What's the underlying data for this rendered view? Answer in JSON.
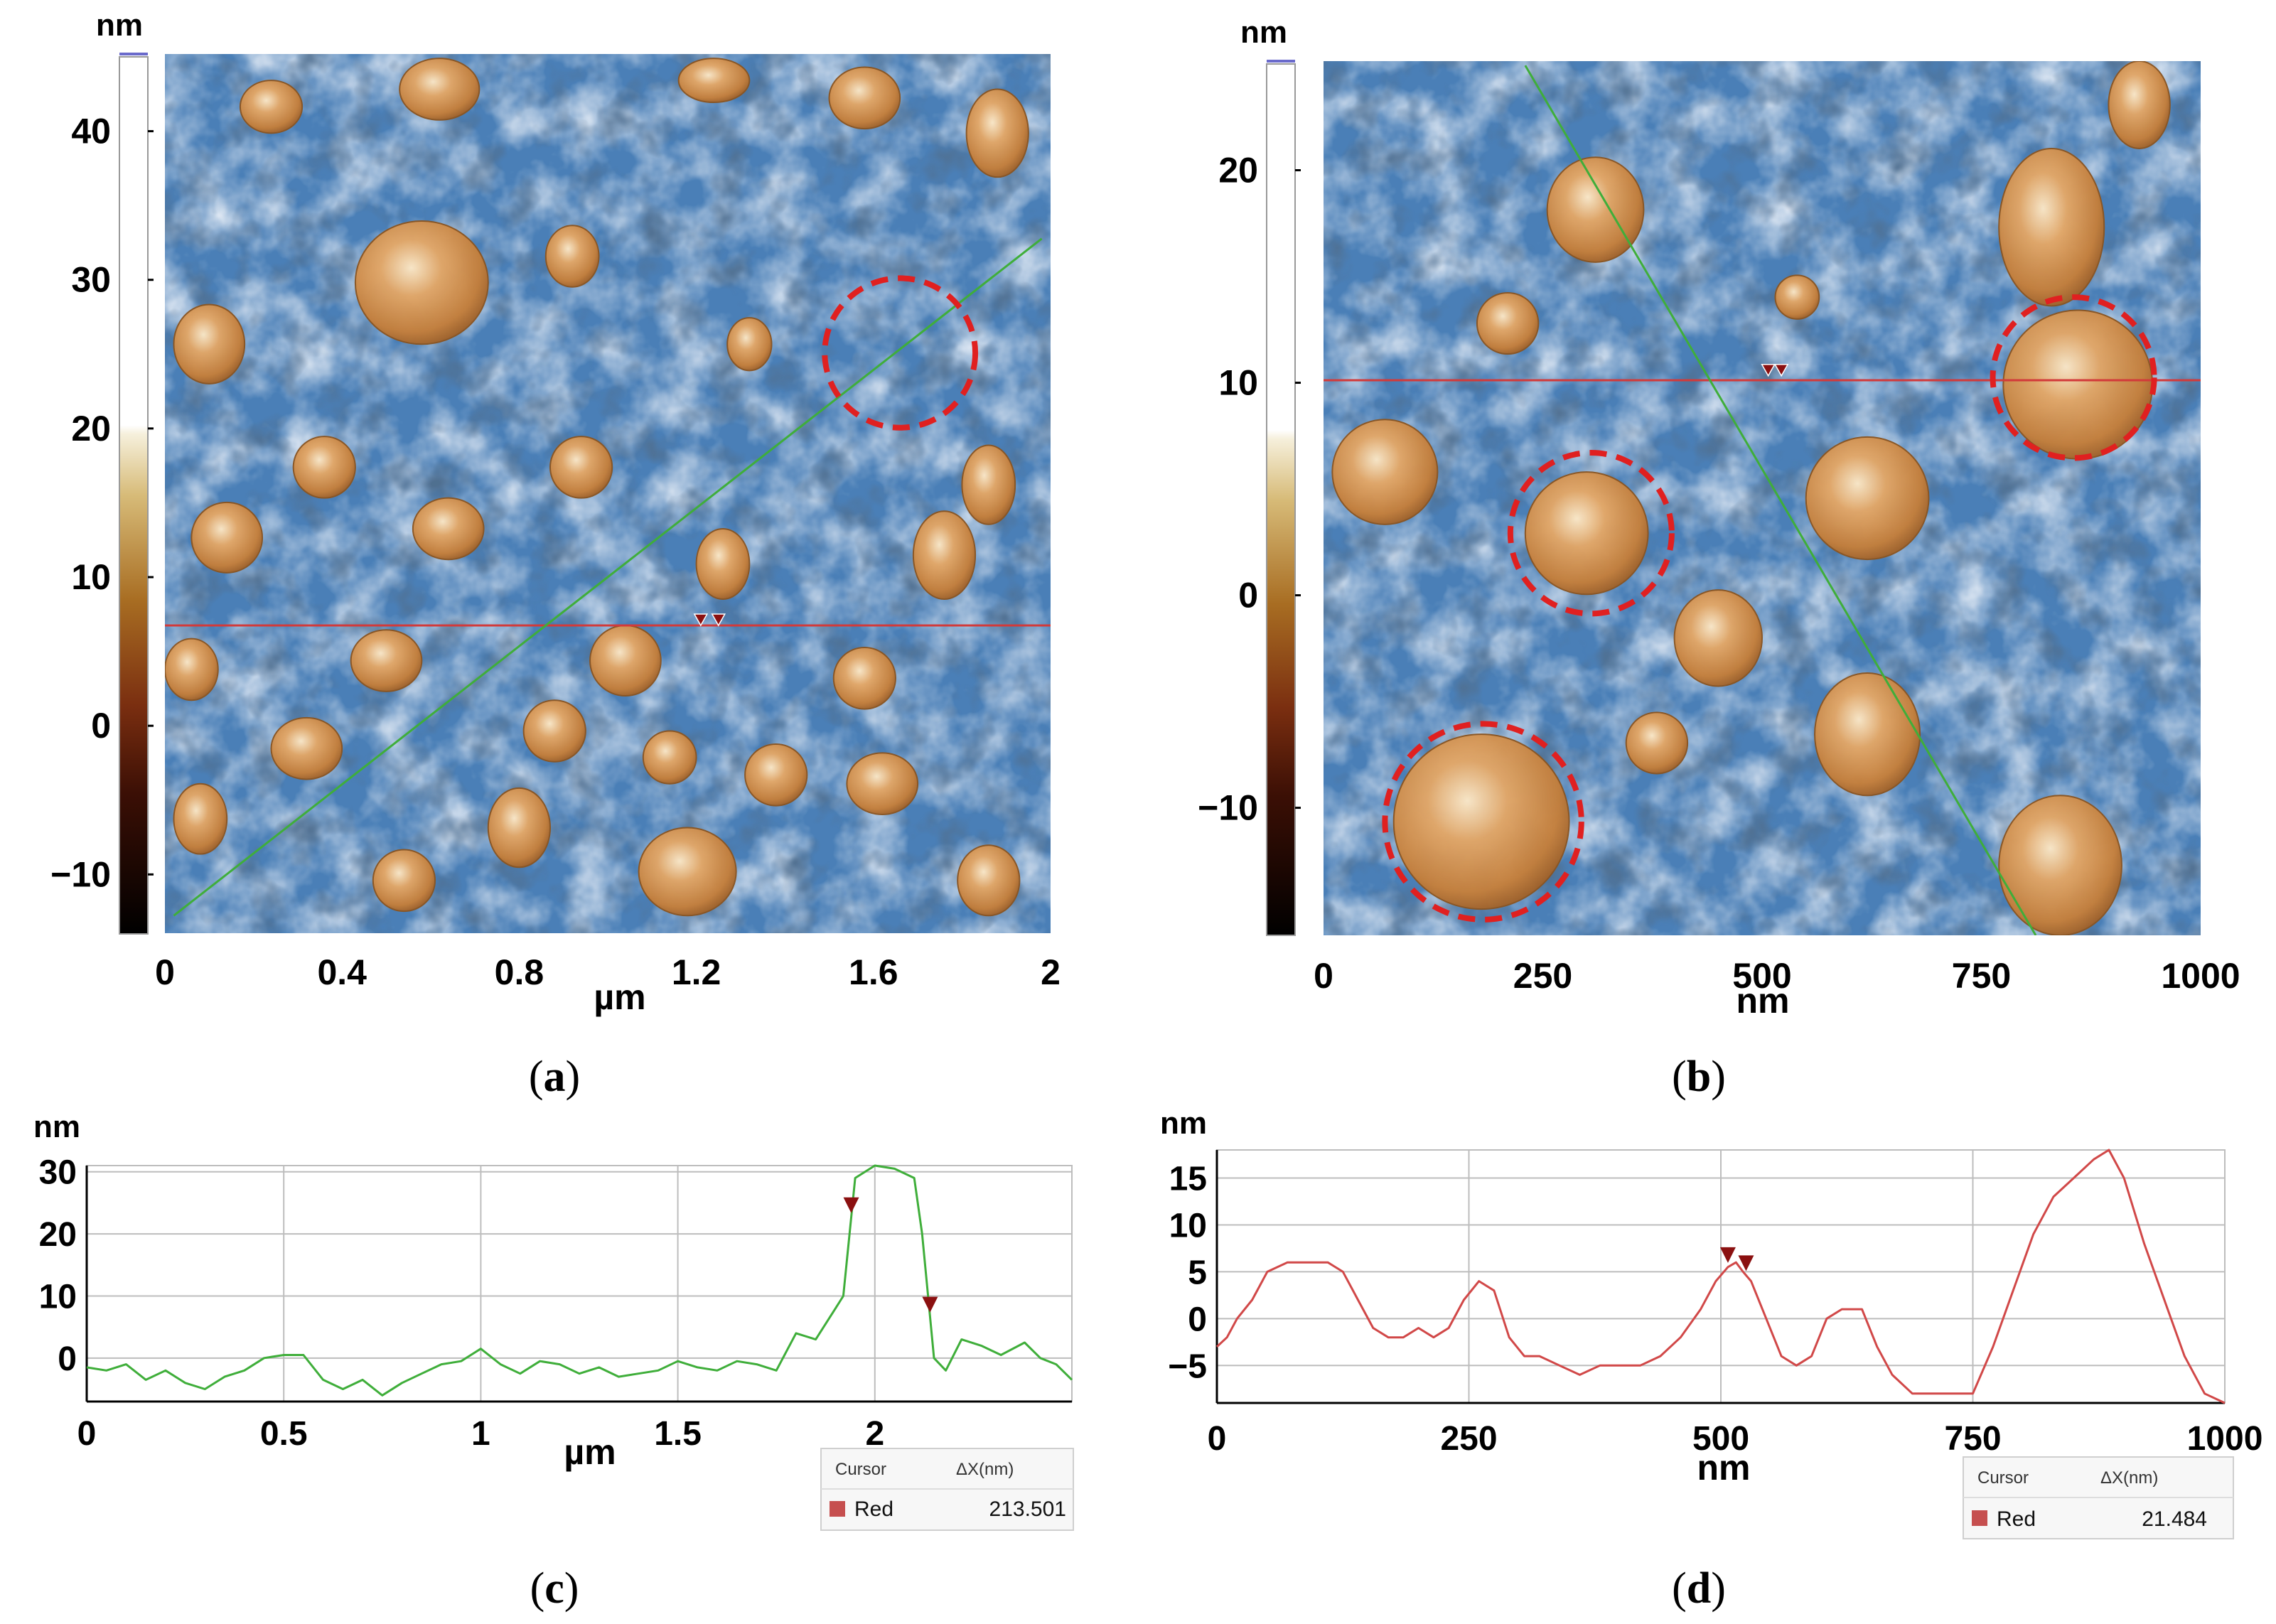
{
  "chart_data": [
    {
      "id": "a",
      "type": "heatmap",
      "caption": "a",
      "colorbar_unit": "nm",
      "colorbar_ticks": [
        40,
        30,
        20,
        10,
        0,
        -10
      ],
      "colorbar_tick_labels": [
        "40",
        "30",
        "20",
        "10",
        "0",
        "−10"
      ],
      "colorbar_range": [
        -14,
        45
      ],
      "x_ticks": [
        0,
        0.4,
        0.8,
        1.2,
        1.6,
        2
      ],
      "x_tick_labels": [
        "0",
        "0.4",
        "0.8",
        "1.2",
        "1.6",
        "2"
      ],
      "xlabel": "µm",
      "xlim": [
        0,
        2
      ],
      "ylim": [
        0,
        2
      ],
      "red_line_y": 0.7,
      "green_line": [
        [
          0.02,
          0.04
        ],
        [
          1.98,
          1.58
        ]
      ],
      "markers": [
        [
          1.21,
          0.7
        ],
        [
          1.25,
          0.7
        ]
      ],
      "circles": [
        {
          "cx": 1.66,
          "cy": 1.32,
          "r": 0.17
        }
      ],
      "colors": {
        "high": "#c98a45",
        "low": "#1d3554",
        "line_red": "#d23a3a",
        "line_green": "#3fae3a",
        "circle": "#e02020"
      }
    },
    {
      "id": "b",
      "type": "heatmap",
      "caption": "b",
      "colorbar_unit": "nm",
      "colorbar_ticks": [
        20,
        10,
        0,
        -10
      ],
      "colorbar_tick_labels": [
        "20",
        "10",
        "0",
        "−10"
      ],
      "colorbar_range": [
        -16,
        25
      ],
      "x_ticks": [
        0,
        250,
        500,
        750,
        1000
      ],
      "x_tick_labels": [
        "0",
        "250",
        "500",
        "750",
        "1000"
      ],
      "xlabel": "nm",
      "xlim": [
        0,
        1000
      ],
      "ylim": [
        0,
        1000
      ],
      "red_line_y": 635,
      "green_line": [
        [
          230,
          995
        ],
        [
          812,
          0
        ]
      ],
      "markers": [
        [
          507,
          640
        ],
        [
          522,
          640
        ]
      ],
      "circles": [
        {
          "cx": 305,
          "cy": 460,
          "r": 92
        },
        {
          "cx": 855,
          "cy": 638,
          "r": 92
        },
        {
          "cx": 182,
          "cy": 130,
          "r": 112
        }
      ],
      "colors": {
        "high": "#c98a45",
        "low": "#1d3554",
        "line_red": "#d23a3a",
        "line_green": "#3fae3a",
        "circle": "#e02020"
      }
    },
    {
      "id": "c",
      "type": "line",
      "caption": "c",
      "ylabel": "nm",
      "xlabel": "µm",
      "xlim": [
        0,
        2.5
      ],
      "ylim": [
        -7,
        31
      ],
      "x_ticks": [
        0,
        0.5,
        1,
        1.5,
        2
      ],
      "x_tick_labels": [
        "0",
        "0.5",
        "1",
        "1.5",
        "2"
      ],
      "y_ticks": [
        30,
        20,
        10,
        0
      ],
      "y_tick_labels": [
        "30",
        "20",
        "10",
        "0"
      ],
      "series": [
        {
          "name": "Green profile",
          "color": "#3fae3a",
          "x": [
            0,
            0.05,
            0.1,
            0.15,
            0.2,
            0.25,
            0.3,
            0.35,
            0.4,
            0.45,
            0.5,
            0.55,
            0.6,
            0.65,
            0.7,
            0.75,
            0.8,
            0.85,
            0.9,
            0.95,
            1.0,
            1.05,
            1.1,
            1.15,
            1.2,
            1.25,
            1.3,
            1.35,
            1.4,
            1.45,
            1.5,
            1.55,
            1.6,
            1.65,
            1.7,
            1.75,
            1.8,
            1.85,
            1.9,
            1.92,
            1.95,
            2.0,
            2.05,
            2.1,
            2.12,
            2.15,
            2.18,
            2.22,
            2.27,
            2.32,
            2.38,
            2.42,
            2.46,
            2.5
          ],
          "y": [
            -1.5,
            -2,
            -1,
            -3.5,
            -2,
            -4,
            -5,
            -3,
            -2,
            0,
            0.5,
            0.5,
            -3.5,
            -5,
            -3.5,
            -6,
            -4,
            -2.5,
            -1,
            -0.5,
            1.5,
            -1,
            -2.5,
            -0.5,
            -1,
            -2.5,
            -1.5,
            -3,
            -2.5,
            -2,
            -0.5,
            -1.5,
            -2,
            -0.5,
            -1,
            -2,
            4,
            3,
            8,
            10,
            29,
            31,
            30.5,
            29,
            20,
            0,
            -2,
            3,
            2,
            0.5,
            2.5,
            0,
            -1,
            -3.5
          ]
        }
      ],
      "cursor_markers": [
        1.94,
        2.14
      ],
      "cursor_table": {
        "header_cursor": "Cursor",
        "header_dx": "ΔX(nm)",
        "row_label": "Red",
        "row_value": "213.501",
        "swatch": "#c64f4f"
      }
    },
    {
      "id": "d",
      "type": "line",
      "caption": "d",
      "ylabel": "nm",
      "xlabel": "nm",
      "xlim": [
        0,
        1000
      ],
      "ylim": [
        -9,
        18
      ],
      "x_ticks": [
        0,
        250,
        500,
        750,
        1000
      ],
      "x_tick_labels": [
        "0",
        "250",
        "500",
        "750",
        "1000"
      ],
      "y_ticks": [
        15,
        10,
        5,
        0,
        -5
      ],
      "y_tick_labels": [
        "15",
        "10",
        "5",
        "0",
        "−5"
      ],
      "series": [
        {
          "name": "Red profile",
          "color": "#d14848",
          "x": [
            0,
            10,
            20,
            35,
            50,
            70,
            90,
            110,
            125,
            140,
            155,
            170,
            185,
            200,
            215,
            230,
            245,
            260,
            275,
            290,
            305,
            320,
            340,
            360,
            380,
            400,
            420,
            440,
            460,
            480,
            495,
            507,
            515,
            522,
            530,
            545,
            560,
            575,
            590,
            605,
            620,
            640,
            655,
            670,
            690,
            710,
            730,
            750,
            770,
            790,
            810,
            830,
            850,
            870,
            885,
            900,
            920,
            940,
            960,
            980,
            1000
          ],
          "y": [
            -3,
            -2,
            0,
            2,
            5,
            6,
            6,
            6,
            5,
            2,
            -1,
            -2,
            -2,
            -1,
            -2,
            -1,
            2,
            4,
            3,
            -2,
            -4,
            -4,
            -5,
            -6,
            -5,
            -5,
            -5,
            -4,
            -2,
            1,
            4,
            5.5,
            6,
            5,
            4,
            0,
            -4,
            -5,
            -4,
            0,
            1,
            1,
            -3,
            -6,
            -8,
            -8,
            -8,
            -8,
            -3,
            3,
            9,
            13,
            15,
            17,
            18,
            15,
            8,
            2,
            -4,
            -8,
            -9
          ]
        }
      ],
      "cursor_markers": [
        507,
        525
      ],
      "cursor_table": {
        "header_cursor": "Cursor",
        "header_dx": "ΔX(nm)",
        "row_label": "Red",
        "row_value": "21.484",
        "swatch": "#c64f4f"
      }
    }
  ]
}
